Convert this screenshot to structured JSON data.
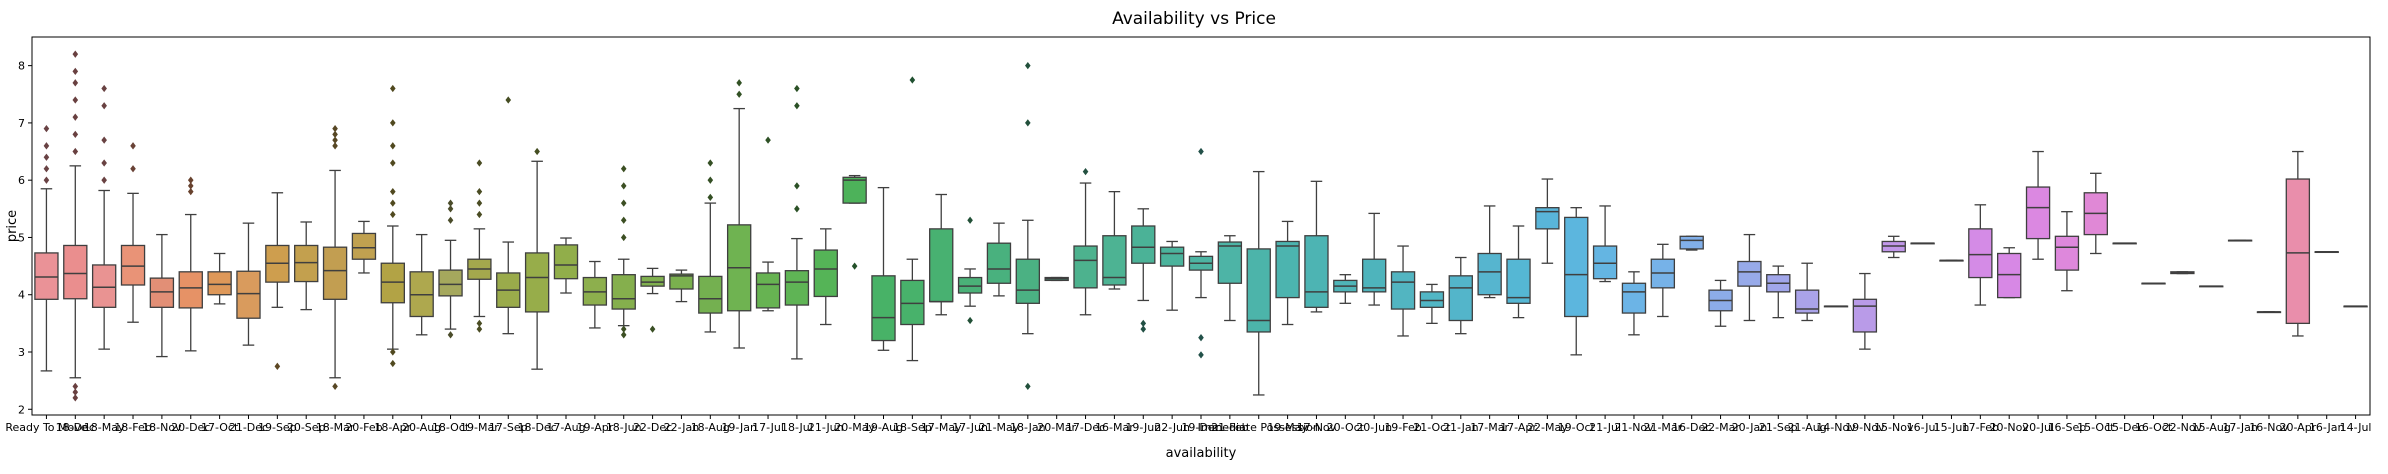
{
  "chart_data": {
    "type": "box",
    "title": "Availability vs Price",
    "xlabel": "availability",
    "ylabel": "price",
    "ylim": [
      1.9,
      8.5
    ],
    "yticks": [
      2,
      3,
      4,
      5,
      6,
      7,
      8
    ],
    "grid": false,
    "legend": "none",
    "categories": [
      "Ready To Move",
      "18-Dec",
      "18-May",
      "18-Feb",
      "18-Nov",
      "20-Dec",
      "17-Oct",
      "21-Dec",
      "19-Sep",
      "20-Sep",
      "18-Mar",
      "20-Feb",
      "18-Apr",
      "20-Aug",
      "18-Oct",
      "19-Mar",
      "17-Sep",
      "18-Dec",
      "17-Aug",
      "19-Apr",
      "18-Jun",
      "22-Dec",
      "22-Jan",
      "18-Aug",
      "19-Jan",
      "17-Jul",
      "18-Jul",
      "21-Jun",
      "20-May",
      "19-Aug",
      "18-Sep",
      "17-May",
      "17-Jun",
      "21-May",
      "18-Jan",
      "20-Mar",
      "17-Dec",
      "16-Mar",
      "19-Jun",
      "22-Jun",
      "19-Dec",
      "21-Feb",
      "Immediate Possession",
      "19-May",
      "17-Nov",
      "20-Oct",
      "20-Jun",
      "19-Feb",
      "21-Oct",
      "21-Jan",
      "17-Mar",
      "17-Apr",
      "22-May",
      "19-Oct",
      "21-Jul",
      "21-Nov",
      "21-Mar",
      "16-Dec",
      "22-Mar",
      "20-Jan",
      "21-Sep",
      "21-Aug",
      "14-Nov",
      "19-Nov",
      "15-Nov",
      "16-Jul",
      "15-Jun",
      "17-Feb",
      "20-Nov",
      "20-Jul",
      "16-Sep",
      "15-Oct",
      "15-Dec",
      "16-Oct",
      "22-Nov",
      "15-Aug",
      "17-Jan",
      "16-Nov",
      "20-Apr",
      "16-Jan",
      "14-Jul"
    ],
    "tick_labels": [
      "Ready To Move",
      "18-Dec",
      "18-May",
      "18-Feb",
      "18-Nov",
      "20-Dec",
      "17-Oct",
      "21-Dec",
      "19-Sep",
      "20-Sep",
      "18-Mar",
      "20-Feb",
      "18-Apr",
      "20-Aug",
      "18-Oct",
      "19-Mar",
      "17-Sep",
      "18-Dec",
      "17-Aug",
      "19-Apr",
      "18-Jun",
      "22-Dec",
      "22-Jan",
      "18-Aug",
      "19-Jan",
      "17-Jul",
      "18-Jul",
      "21-Jun",
      "20-May",
      "19-Aug",
      "18-Sep",
      "17-May",
      "17-Jun",
      "21-May",
      "18-Jan",
      "20-Mar",
      "17-Dec",
      "16-Mar",
      "19-Jun",
      "22-Jun",
      "19-Dec",
      "21-Feb",
      "Immediate Possession",
      "19-May",
      "17-Nov",
      "20-Oct",
      "20-Jun",
      "19-Feb",
      "21-Oct",
      "21-Jan",
      "17-Mar",
      "17-Apr",
      "22-May",
      "19-Oct",
      "21-Jul",
      "21-Nov",
      "21-Mar",
      "16-Dec",
      "22-Mar",
      "20-Jan",
      "21-Sep",
      "21-Aug",
      "14-Nov",
      "19-Nov",
      "15-Nov",
      "16-Jul",
      "15-Jun",
      "17-Feb",
      "20-Nov",
      "20-Jul",
      "16-Sep",
      "15-Oct",
      "15-Dec",
      "16-Oct",
      "22-Nov",
      "15-Aug",
      "17-Jan",
      "16-Nov",
      "20-Apr",
      "16-Jan",
      "14-Jul"
    ],
    "colors": [
      "#ea9297",
      "#ea8e8e",
      "#e99392",
      "#e99377",
      "#e28f76",
      "#e69266",
      "#de9859",
      "#d99b5d",
      "#ce9e4e",
      "#c3a04e",
      "#c29e51",
      "#c0a150",
      "#b2a345",
      "#aea84e",
      "#a5a85d",
      "#a4a84d",
      "#9aab4b",
      "#97ad4a",
      "#91ae4a",
      "#8daf4d",
      "#85af4d",
      "#80b04f",
      "#7ab04e",
      "#74b050",
      "#6fb351",
      "#67b352",
      "#5fb455",
      "#55b457",
      "#4db25a",
      "#48b267",
      "#48b26b",
      "#48b171",
      "#4ab178",
      "#49b17e",
      "#4bb183",
      "#4bb289",
      "#4db28e",
      "#4db393",
      "#4bb297",
      "#4bb39c",
      "#4db4a2",
      "#4db4a6",
      "#4cb4aa",
      "#4cb4af",
      "#4db4b3",
      "#4fb5b8",
      "#4eb4bc",
      "#52b5c1",
      "#51b6c5",
      "#53b5ca",
      "#56b5cf",
      "#55b7d4",
      "#59b5d9",
      "#5cb6de",
      "#64b5e2",
      "#6cb4e6",
      "#76b2e8",
      "#81afe9",
      "#8cace9",
      "#97aae9",
      "#a1a6ea",
      "#aaa3e9",
      "#b19fe7",
      "#b99be8",
      "#c197e9",
      "#c995e8",
      "#ce8fe7",
      "#d48be6",
      "#d788e5",
      "#db88e1",
      "#de88dc",
      "#e088d6",
      "#e288d1",
      "#e48bcb",
      "#e68cc5",
      "#e78dbe",
      "#e78db8",
      "#e88eb2",
      "#e98eab",
      "#e88fa4",
      "#e99093"
    ],
    "boxes": [
      {
        "q1": 3.92,
        "med": 4.31,
        "q3": 4.73,
        "wlo": 2.67,
        "whi": 5.85,
        "out": [
          6.0,
          6.2,
          6.4,
          6.6,
          6.9
        ]
      },
      {
        "q1": 3.93,
        "med": 4.37,
        "q3": 4.86,
        "wlo": 2.55,
        "whi": 6.25,
        "out": [
          2.2,
          2.3,
          2.4,
          6.5,
          6.8,
          7.1,
          7.4,
          7.7,
          7.9,
          8.2
        ]
      },
      {
        "q1": 3.78,
        "med": 4.13,
        "q3": 4.52,
        "wlo": 3.05,
        "whi": 5.82,
        "out": [
          6.0,
          6.3,
          6.7,
          7.3,
          7.6
        ]
      },
      {
        "q1": 4.17,
        "med": 4.5,
        "q3": 4.86,
        "wlo": 3.52,
        "whi": 5.77,
        "out": [
          6.2,
          6.6
        ]
      },
      {
        "q1": 3.78,
        "med": 4.05,
        "q3": 4.29,
        "wlo": 2.92,
        "whi": 5.05,
        "out": []
      },
      {
        "q1": 3.77,
        "med": 4.12,
        "q3": 4.4,
        "wlo": 3.02,
        "whi": 5.4,
        "out": [
          5.8,
          5.9,
          6.0
        ]
      },
      {
        "q1": 4.0,
        "med": 4.18,
        "q3": 4.4,
        "wlo": 3.84,
        "whi": 4.72,
        "out": []
      },
      {
        "q1": 3.59,
        "med": 4.02,
        "q3": 4.41,
        "wlo": 3.12,
        "whi": 5.25,
        "out": []
      },
      {
        "q1": 4.22,
        "med": 4.55,
        "q3": 4.86,
        "wlo": 3.78,
        "whi": 5.78,
        "out": [
          2.75
        ]
      },
      {
        "q1": 4.23,
        "med": 4.56,
        "q3": 4.86,
        "wlo": 3.74,
        "whi": 5.27,
        "out": []
      },
      {
        "q1": 3.92,
        "med": 4.42,
        "q3": 4.83,
        "wlo": 2.55,
        "whi": 6.17,
        "out": [
          2.4,
          6.6,
          6.7,
          6.8,
          6.9
        ]
      },
      {
        "q1": 4.62,
        "med": 4.82,
        "q3": 5.07,
        "wlo": 4.38,
        "whi": 5.28,
        "out": []
      },
      {
        "q1": 3.86,
        "med": 4.22,
        "q3": 4.55,
        "wlo": 3.05,
        "whi": 5.2,
        "out": [
          2.8,
          3.0,
          5.4,
          5.6,
          5.8,
          6.3,
          6.6,
          7.0,
          7.6
        ]
      },
      {
        "q1": 3.62,
        "med": 4.0,
        "q3": 4.4,
        "wlo": 3.3,
        "whi": 5.05,
        "out": []
      },
      {
        "q1": 3.98,
        "med": 4.18,
        "q3": 4.43,
        "wlo": 3.4,
        "whi": 4.95,
        "out": [
          3.3,
          5.3,
          5.5,
          5.6
        ]
      },
      {
        "q1": 4.27,
        "med": 4.45,
        "q3": 4.62,
        "wlo": 3.62,
        "whi": 5.15,
        "out": [
          3.4,
          3.5,
          5.4,
          5.6,
          5.8,
          6.3
        ]
      },
      {
        "q1": 3.78,
        "med": 4.08,
        "q3": 4.38,
        "wlo": 3.32,
        "whi": 4.92,
        "out": [
          7.4
        ]
      },
      {
        "q1": 3.7,
        "med": 4.3,
        "q3": 4.73,
        "wlo": 2.7,
        "whi": 6.33,
        "out": [
          6.5
        ]
      },
      {
        "q1": 4.28,
        "med": 4.52,
        "q3": 4.87,
        "wlo": 4.03,
        "whi": 4.99,
        "out": []
      },
      {
        "q1": 3.82,
        "med": 4.05,
        "q3": 4.3,
        "wlo": 3.42,
        "whi": 4.58,
        "out": []
      },
      {
        "q1": 3.75,
        "med": 3.93,
        "q3": 4.35,
        "wlo": 3.46,
        "whi": 4.62,
        "out": [
          3.3,
          3.4,
          5.0,
          5.3,
          5.6,
          5.9,
          6.2
        ]
      },
      {
        "q1": 4.15,
        "med": 4.22,
        "q3": 4.32,
        "wlo": 4.02,
        "whi": 4.46,
        "out": [
          3.4
        ]
      },
      {
        "q1": 4.1,
        "med": 4.33,
        "q3": 4.36,
        "wlo": 3.88,
        "whi": 4.43,
        "out": []
      },
      {
        "q1": 3.68,
        "med": 3.93,
        "q3": 4.32,
        "wlo": 3.35,
        "whi": 5.6,
        "out": [
          5.7,
          6.0,
          6.3
        ]
      },
      {
        "q1": 3.72,
        "med": 4.47,
        "q3": 5.22,
        "wlo": 3.07,
        "whi": 7.25,
        "out": [
          7.5,
          7.7
        ]
      },
      {
        "q1": 3.77,
        "med": 4.18,
        "q3": 4.38,
        "wlo": 3.72,
        "whi": 4.57,
        "out": [
          6.7
        ]
      },
      {
        "q1": 3.82,
        "med": 4.22,
        "q3": 4.42,
        "wlo": 2.88,
        "whi": 4.98,
        "out": [
          5.5,
          5.9,
          7.3,
          7.6
        ]
      },
      {
        "q1": 3.97,
        "med": 4.45,
        "q3": 4.78,
        "wlo": 3.48,
        "whi": 5.15,
        "out": []
      },
      {
        "q1": 5.6,
        "med": 6.0,
        "q3": 6.05,
        "wlo": 5.6,
        "whi": 6.08,
        "out": [
          4.5
        ]
      },
      {
        "q1": 3.2,
        "med": 3.6,
        "q3": 4.33,
        "wlo": 3.03,
        "whi": 5.87,
        "out": []
      },
      {
        "q1": 3.48,
        "med": 3.85,
        "q3": 4.25,
        "wlo": 2.85,
        "whi": 4.62,
        "out": [
          7.75
        ]
      },
      {
        "q1": 3.88,
        "med": 3.88,
        "q3": 5.15,
        "wlo": 3.65,
        "whi": 5.75,
        "out": []
      },
      {
        "q1": 4.03,
        "med": 4.15,
        "q3": 4.3,
        "wlo": 3.8,
        "whi": 4.45,
        "out": [
          3.55,
          5.3
        ]
      },
      {
        "q1": 4.2,
        "med": 4.45,
        "q3": 4.9,
        "wlo": 3.98,
        "whi": 5.25,
        "out": []
      },
      {
        "q1": 3.85,
        "med": 4.08,
        "q3": 4.62,
        "wlo": 3.32,
        "whi": 5.3,
        "out": [
          2.4,
          7.0,
          8.0
        ]
      },
      {
        "q1": 4.25,
        "med": 4.28,
        "q3": 4.3,
        "wlo": 4.25,
        "whi": 4.3,
        "out": []
      },
      {
        "q1": 4.12,
        "med": 4.6,
        "q3": 4.85,
        "wlo": 3.65,
        "whi": 5.95,
        "out": [
          6.15
        ]
      },
      {
        "q1": 4.17,
        "med": 4.3,
        "q3": 5.03,
        "wlo": 4.1,
        "whi": 5.8,
        "out": []
      },
      {
        "q1": 4.55,
        "med": 4.83,
        "q3": 5.2,
        "wlo": 3.9,
        "whi": 5.5,
        "out": [
          3.4,
          3.5
        ]
      },
      {
        "q1": 4.5,
        "med": 4.72,
        "q3": 4.83,
        "wlo": 3.73,
        "whi": 4.93,
        "out": []
      },
      {
        "q1": 4.43,
        "med": 4.55,
        "q3": 4.67,
        "wlo": 3.95,
        "whi": 4.75,
        "out": [
          2.95,
          3.25,
          6.5
        ]
      },
      {
        "q1": 4.2,
        "med": 4.85,
        "q3": 4.92,
        "wlo": 3.55,
        "whi": 5.03,
        "out": []
      },
      {
        "q1": 3.35,
        "med": 3.55,
        "q3": 4.8,
        "wlo": 2.25,
        "whi": 6.15,
        "out": []
      },
      {
        "q1": 3.95,
        "med": 4.85,
        "q3": 4.93,
        "wlo": 3.48,
        "whi": 5.28,
        "out": []
      },
      {
        "q1": 3.78,
        "med": 4.05,
        "q3": 5.03,
        "wlo": 3.7,
        "whi": 5.98,
        "out": []
      },
      {
        "q1": 4.05,
        "med": 4.15,
        "q3": 4.25,
        "wlo": 3.85,
        "whi": 4.35,
        "out": []
      },
      {
        "q1": 4.05,
        "med": 4.12,
        "q3": 4.62,
        "wlo": 3.82,
        "whi": 5.42,
        "out": []
      },
      {
        "q1": 3.75,
        "med": 4.22,
        "q3": 4.4,
        "wlo": 3.28,
        "whi": 4.85,
        "out": []
      },
      {
        "q1": 3.78,
        "med": 3.9,
        "q3": 4.05,
        "wlo": 3.5,
        "whi": 4.18,
        "out": []
      },
      {
        "q1": 3.55,
        "med": 4.12,
        "q3": 4.33,
        "wlo": 3.32,
        "whi": 4.65,
        "out": []
      },
      {
        "q1": 4.0,
        "med": 4.4,
        "q3": 4.72,
        "wlo": 3.95,
        "whi": 5.55,
        "out": []
      },
      {
        "q1": 3.85,
        "med": 3.95,
        "q3": 4.62,
        "wlo": 3.6,
        "whi": 5.2,
        "out": []
      },
      {
        "q1": 5.15,
        "med": 5.45,
        "q3": 5.52,
        "wlo": 4.55,
        "whi": 6.02,
        "out": []
      },
      {
        "q1": 3.62,
        "med": 4.35,
        "q3": 5.35,
        "wlo": 2.95,
        "whi": 5.52,
        "out": []
      },
      {
        "q1": 4.28,
        "med": 4.55,
        "q3": 4.85,
        "wlo": 4.23,
        "whi": 5.55,
        "out": []
      },
      {
        "q1": 3.68,
        "med": 4.05,
        "q3": 4.2,
        "wlo": 3.3,
        "whi": 4.4,
        "out": []
      },
      {
        "q1": 4.12,
        "med": 4.38,
        "q3": 4.62,
        "wlo": 3.62,
        "whi": 4.88,
        "out": []
      },
      {
        "q1": 4.8,
        "med": 4.95,
        "q3": 5.02,
        "wlo": 4.78,
        "whi": 5.02,
        "out": []
      },
      {
        "q1": 3.72,
        "med": 3.9,
        "q3": 4.08,
        "wlo": 3.45,
        "whi": 4.25,
        "out": []
      },
      {
        "q1": 4.15,
        "med": 4.4,
        "q3": 4.58,
        "wlo": 3.55,
        "whi": 5.05,
        "out": []
      },
      {
        "q1": 4.05,
        "med": 4.2,
        "q3": 4.35,
        "wlo": 3.6,
        "whi": 4.5,
        "out": []
      },
      {
        "q1": 3.68,
        "med": 3.75,
        "q3": 4.08,
        "wlo": 3.55,
        "whi": 4.55,
        "out": []
      },
      {
        "q1": 3.8,
        "med": 3.8,
        "q3": 3.8,
        "wlo": 3.8,
        "whi": 3.8,
        "out": []
      },
      {
        "q1": 3.35,
        "med": 3.8,
        "q3": 3.92,
        "wlo": 3.05,
        "whi": 4.37,
        "out": []
      },
      {
        "q1": 4.75,
        "med": 4.85,
        "q3": 4.93,
        "wlo": 4.65,
        "whi": 5.02,
        "out": []
      },
      {
        "q1": 4.9,
        "med": 4.9,
        "q3": 4.9,
        "wlo": 4.9,
        "whi": 4.9,
        "out": []
      },
      {
        "q1": 4.6,
        "med": 4.6,
        "q3": 4.6,
        "wlo": 4.6,
        "whi": 4.6,
        "out": []
      },
      {
        "q1": 4.3,
        "med": 4.7,
        "q3": 5.15,
        "wlo": 3.82,
        "whi": 5.57,
        "out": []
      },
      {
        "q1": 3.95,
        "med": 4.35,
        "q3": 4.72,
        "wlo": 3.95,
        "whi": 4.82,
        "out": []
      },
      {
        "q1": 4.98,
        "med": 5.52,
        "q3": 5.88,
        "wlo": 4.62,
        "whi": 6.5,
        "out": []
      },
      {
        "q1": 4.43,
        "med": 4.83,
        "q3": 5.02,
        "wlo": 4.07,
        "whi": 5.45,
        "out": []
      },
      {
        "q1": 5.05,
        "med": 5.42,
        "q3": 5.78,
        "wlo": 4.72,
        "whi": 6.12,
        "out": []
      },
      {
        "q1": 4.9,
        "med": 4.9,
        "q3": 4.9,
        "wlo": 4.9,
        "whi": 4.9,
        "out": []
      },
      {
        "q1": 4.2,
        "med": 4.2,
        "q3": 4.2,
        "wlo": 4.2,
        "whi": 4.2,
        "out": []
      },
      {
        "q1": 4.37,
        "med": 4.38,
        "q3": 4.4,
        "wlo": 4.37,
        "whi": 4.4,
        "out": []
      },
      {
        "q1": 4.15,
        "med": 4.15,
        "q3": 4.15,
        "wlo": 4.15,
        "whi": 4.15,
        "out": []
      },
      {
        "q1": 4.95,
        "med": 4.95,
        "q3": 4.95,
        "wlo": 4.95,
        "whi": 4.95,
        "out": []
      },
      {
        "q1": 3.7,
        "med": 3.7,
        "q3": 3.7,
        "wlo": 3.7,
        "whi": 3.7,
        "out": []
      },
      {
        "q1": 3.5,
        "med": 4.73,
        "q3": 6.02,
        "wlo": 3.28,
        "whi": 6.5,
        "out": []
      },
      {
        "q1": 4.75,
        "med": 4.75,
        "q3": 4.75,
        "wlo": 4.75,
        "whi": 4.75,
        "out": []
      },
      {
        "q1": 3.8,
        "med": 3.8,
        "q3": 3.8,
        "wlo": 3.8,
        "whi": 3.8,
        "out": []
      }
    ]
  }
}
